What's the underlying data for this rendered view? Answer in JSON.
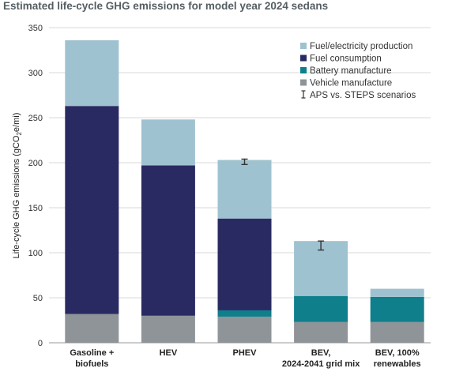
{
  "chart_data": {
    "type": "bar",
    "stacked": true,
    "title": "Estimated life-cycle GHG emissions for model year 2024 sedans",
    "ylabel_parts": [
      "Life-cycle GHG emissions (gCO",
      "2",
      "e/mi)"
    ],
    "ylim": [
      0,
      350
    ],
    "yticks": [
      0,
      50,
      100,
      150,
      200,
      250,
      300,
      350
    ],
    "grid": true,
    "legend_position": "top-right",
    "categories": [
      [
        "Gasoline +",
        "biofuels"
      ],
      [
        "HEV"
      ],
      [
        "PHEV"
      ],
      [
        "BEV,",
        "2024-2041 grid mix"
      ],
      [
        "BEV, 100%",
        "renewables"
      ]
    ],
    "series": [
      {
        "name": "Vehicle manufacture",
        "color": "#8f9499",
        "values": [
          32,
          30,
          29,
          23,
          23
        ]
      },
      {
        "name": "Battery manufacture",
        "color": "#0f7f8c",
        "values": [
          0,
          0,
          7,
          29,
          28
        ]
      },
      {
        "name": "Fuel consumption",
        "color": "#2a2a63",
        "values": [
          231,
          167,
          102,
          0,
          0
        ]
      },
      {
        "name": "Fuel/electricity production",
        "color": "#9fc2d0",
        "values": [
          73,
          51,
          65,
          61,
          9
        ]
      }
    ],
    "legend_order": [
      "Fuel/electricity production",
      "Fuel consumption",
      "Battery manufacture",
      "Vehicle manufacture"
    ],
    "error_bar_label": "APS vs. STEPS scenarios",
    "error_bars": [
      null,
      null,
      {
        "center": 201,
        "low": 198,
        "high": 204
      },
      {
        "center": 108,
        "low": 103,
        "high": 113
      },
      null
    ]
  }
}
